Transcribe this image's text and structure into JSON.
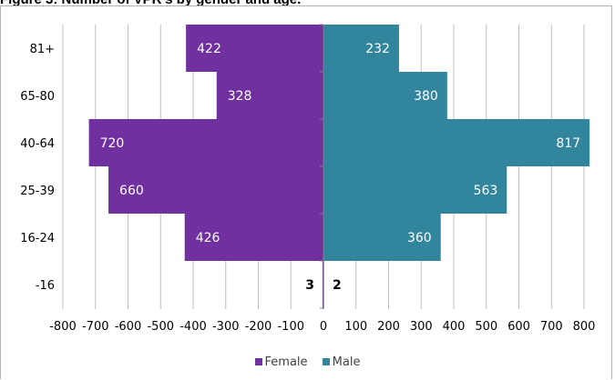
{
  "chart_data": {
    "type": "bar",
    "orientation": "horizontal-population-pyramid",
    "title": "Figure 3: Number of VPR's by gender and age.",
    "categories": [
      "81+",
      "65-80",
      "40-64",
      "25-39",
      "16-24",
      "-16"
    ],
    "series": [
      {
        "name": "Female",
        "values": [
          422,
          328,
          720,
          660,
          426,
          3
        ],
        "color": "#7030a0"
      },
      {
        "name": "Male",
        "values": [
          232,
          380,
          817,
          563,
          360,
          2
        ],
        "color": "#31859c"
      }
    ],
    "xlim": [
      -800,
      800
    ],
    "xticks": [
      -800,
      -700,
      -600,
      -500,
      -400,
      -300,
      -200,
      -100,
      0,
      100,
      200,
      300,
      400,
      500,
      600,
      700,
      800
    ],
    "xtick_labels": [
      "-800",
      "-700",
      "-600",
      "-500",
      "-400",
      "-300",
      "-200",
      "-100",
      "0",
      "100",
      "200",
      "300",
      "400",
      "500",
      "600",
      "700",
      "800"
    ],
    "grid": true,
    "legend_position": "bottom",
    "xlabel": "",
    "ylabel": ""
  }
}
